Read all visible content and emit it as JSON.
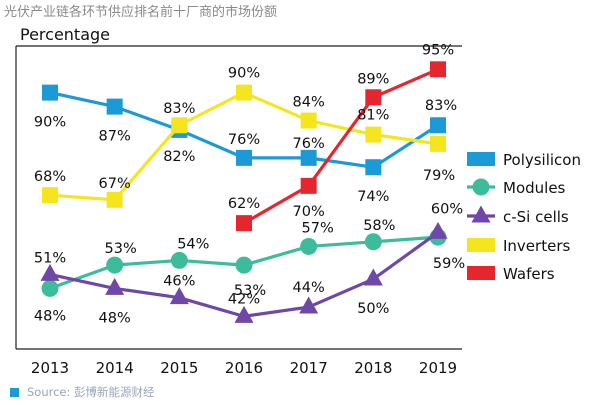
{
  "header": {
    "title": "光伏产业链各环节供应排名前十厂商的市场份额"
  },
  "source": {
    "text": "Source: 彭博新能源财经"
  },
  "colors": {
    "polysilicon": "#1b9ad6",
    "modules": "#3dbc9b",
    "csi": "#6f47a8",
    "inverters": "#f5e51e",
    "wafers": "#e5262d"
  },
  "chart_data": {
    "type": "line",
    "title": "",
    "ylabel": "Percentage",
    "xlabel": "",
    "x": [
      "2013",
      "2014",
      "2015",
      "2016",
      "2017",
      "2018",
      "2019"
    ],
    "ylim": [
      35,
      100
    ],
    "grid": false,
    "legend_position": "right",
    "series": [
      {
        "name": "Polysilicon",
        "marker": "square",
        "color": "#1b9ad6",
        "values": [
          90,
          87,
          82,
          76,
          76,
          74,
          83
        ],
        "labels": [
          "90%",
          "87%",
          "82%",
          "76%",
          "76%",
          "74%",
          "83%"
        ]
      },
      {
        "name": "Modules",
        "marker": "circle",
        "color": "#3dbc9b",
        "values": [
          48,
          53,
          54,
          53,
          57,
          58,
          59
        ],
        "labels": [
          "48%",
          "53%",
          "54%",
          "53%",
          "57%",
          "58%",
          "59%"
        ]
      },
      {
        "name": "c-Si cells",
        "marker": "triangle",
        "color": "#6f47a8",
        "values": [
          51,
          48,
          46,
          42,
          44,
          50,
          60
        ],
        "labels": [
          "51%",
          "48%",
          "46%",
          "42%",
          "44%",
          "50%",
          "60%"
        ]
      },
      {
        "name": "Inverters",
        "marker": "square",
        "color": "#f5e51e",
        "values": [
          68,
          67,
          83,
          90,
          84,
          81,
          79
        ],
        "labels": [
          "68%",
          "67%",
          "83%",
          "90%",
          "84%",
          "81%",
          "79%"
        ]
      },
      {
        "name": "Wafers",
        "marker": "square",
        "color": "#e5262d",
        "values": [
          null,
          null,
          null,
          62,
          70,
          89,
          95
        ],
        "labels": [
          "",
          "",
          "",
          "62%",
          "70%",
          "89%",
          "95%"
        ]
      }
    ]
  }
}
